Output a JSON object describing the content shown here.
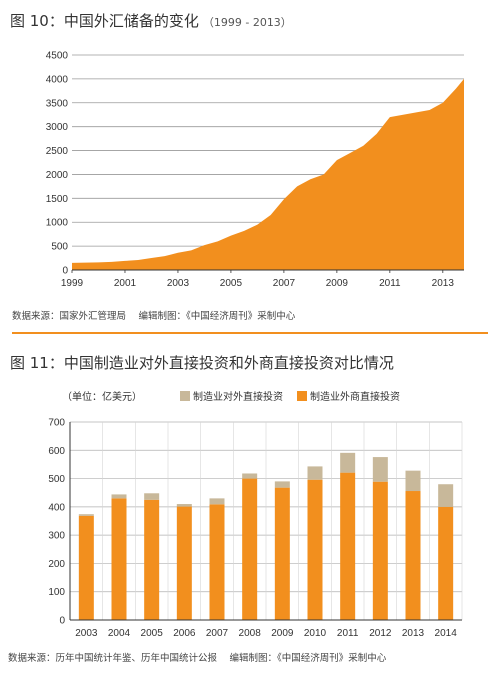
{
  "chart_data": [
    {
      "type": "area",
      "title": "图 10：中国外汇储备的变化",
      "subtitle": "（1999 - 2013）",
      "source": "数据来源：国家外汇管理局　 编辑制图：《中国经济周刊》采制中心",
      "x_ticks": [
        "1999",
        "2001",
        "2003",
        "2005",
        "2007",
        "2009",
        "2011",
        "2013"
      ],
      "y_ticks": [
        0,
        500,
        1000,
        1500,
        2000,
        2500,
        3000,
        3500,
        4000,
        4500
      ],
      "xlim": [
        1999,
        2013.8
      ],
      "ylim": [
        0,
        4500
      ],
      "color": "#f28f1e",
      "x": [
        1999,
        1999.5,
        2000,
        2000.5,
        2001,
        2001.5,
        2002,
        2002.5,
        2003,
        2003.5,
        2004,
        2004.5,
        2005,
        2005.5,
        2006,
        2006.5,
        2007,
        2007.5,
        2008,
        2008.5,
        2009,
        2009.5,
        2010,
        2010.5,
        2011,
        2011.5,
        2012,
        2012.5,
        2013,
        2013.5,
        2013.8
      ],
      "values": [
        150,
        155,
        160,
        170,
        190,
        210,
        250,
        290,
        360,
        410,
        520,
        600,
        720,
        820,
        950,
        1150,
        1480,
        1750,
        1900,
        2000,
        2300,
        2450,
        2600,
        2850,
        3200,
        3250,
        3300,
        3350,
        3500,
        3800,
        4000
      ]
    },
    {
      "type": "bar",
      "title": "图 11：中国制造业对外直接投资和外商直接投资对比情况",
      "unit_label": "（单位：亿美元）",
      "source": "数据来源：历年中国统计年鉴、历年中国统计公报　 编辑制图：《中国经济周刊》采制中心",
      "categories": [
        "2003",
        "2004",
        "2005",
        "2006",
        "2007",
        "2008",
        "2009",
        "2010",
        "2011",
        "2012",
        "2013",
        "2014"
      ],
      "y_ticks": [
        0,
        100,
        200,
        300,
        400,
        500,
        600,
        700
      ],
      "ylim": [
        0,
        700
      ],
      "series": [
        {
          "name": "制造业对外直接投资",
          "color": "#c8b89a",
          "values": [
            6,
            14,
            23,
            9,
            21,
            18,
            22,
            47,
            70,
            87,
            72,
            80
          ]
        },
        {
          "name": "制造业外商直接投资",
          "color": "#f28f1e",
          "values": [
            368,
            430,
            425,
            401,
            409,
            500,
            468,
            496,
            521,
            489,
            456,
            400
          ]
        }
      ]
    }
  ]
}
